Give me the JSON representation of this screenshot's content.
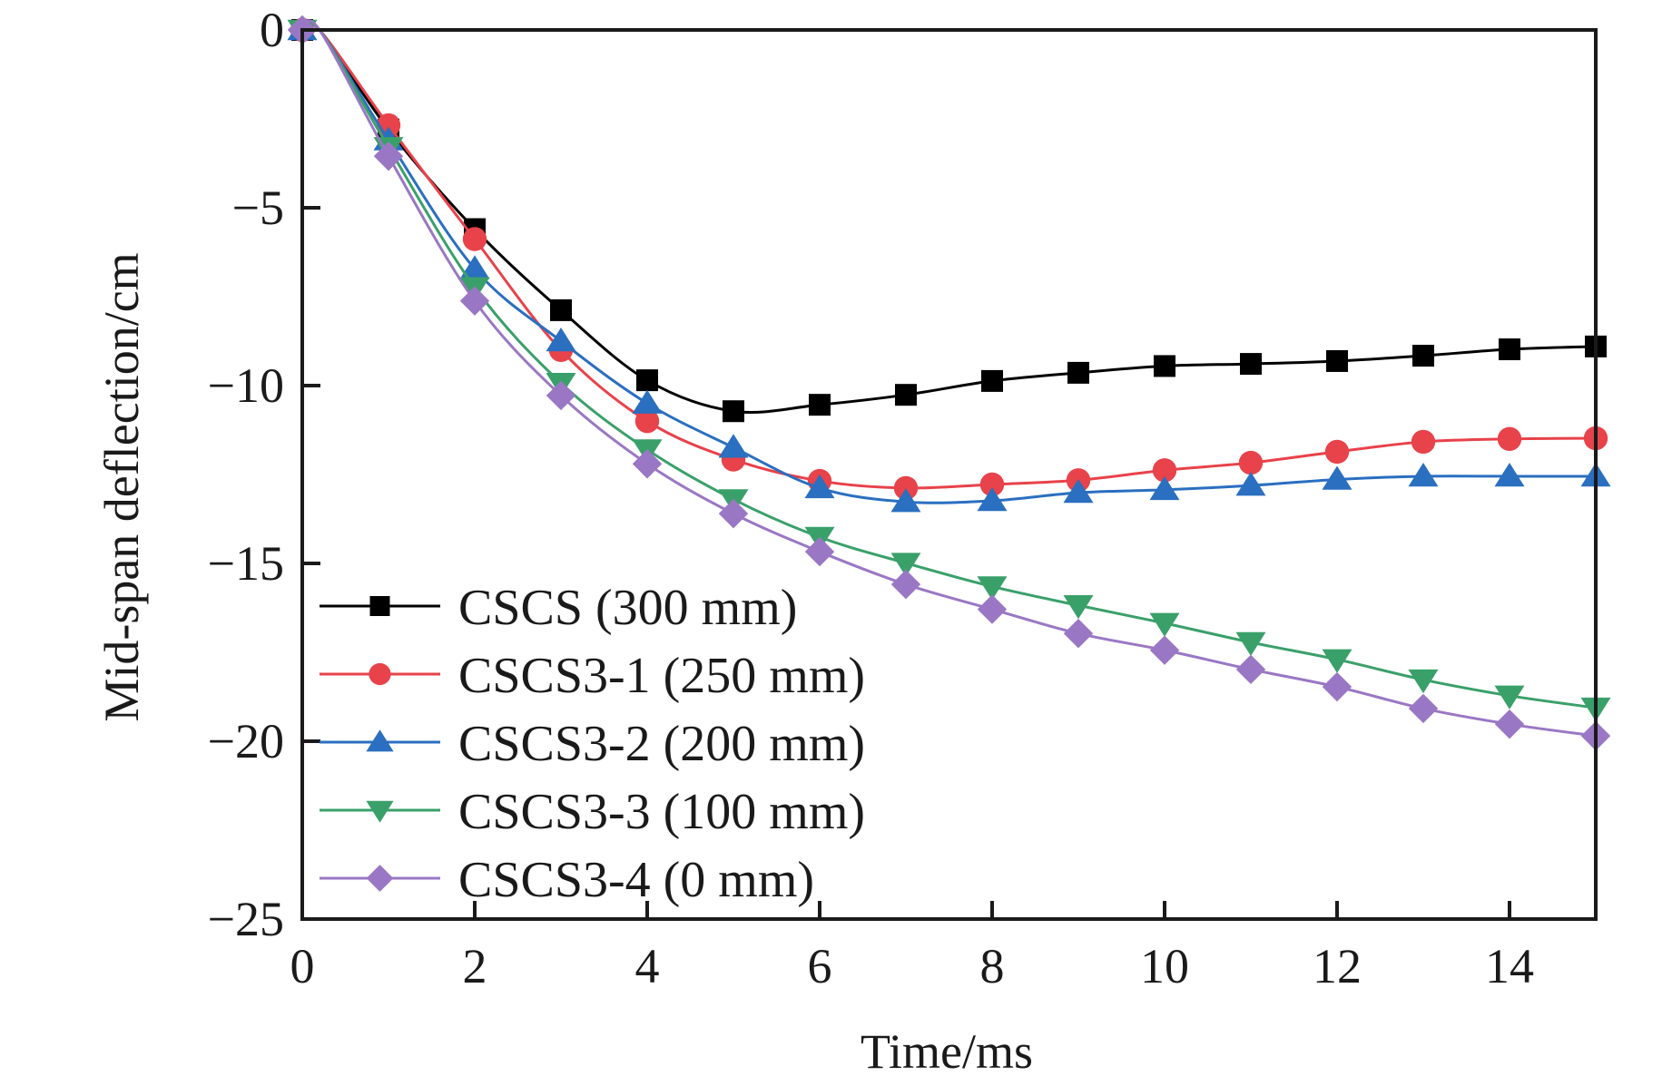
{
  "chart_data": {
    "type": "line",
    "title": "",
    "xlabel": "Time/ms",
    "ylabel": "Mid-span deflection/cm",
    "xlim": [
      0,
      15
    ],
    "ylim": [
      -25,
      0
    ],
    "grid": false,
    "legend_position": "bottom-left",
    "x_ticks": [
      0,
      2,
      4,
      6,
      8,
      10,
      12,
      14
    ],
    "x_tick_labels": [
      "0",
      "2",
      "4",
      "6",
      "8",
      "10",
      "12",
      "14"
    ],
    "y_ticks": [
      0,
      -5,
      -10,
      -15,
      -20,
      -25
    ],
    "y_tick_labels": [
      "0",
      "−5",
      "−10",
      "−15",
      "−20",
      "−25"
    ],
    "x": [
      0,
      1,
      2,
      3,
      4,
      5,
      6,
      7,
      8,
      9,
      10,
      11,
      12,
      13,
      14,
      15
    ],
    "series": [
      {
        "name": "CSCS (300 mm)",
        "color": "#000000",
        "marker": "square",
        "values": [
          0,
          -2.8,
          -5.6,
          -7.88,
          -9.85,
          -10.72,
          -10.54,
          -10.26,
          -9.87,
          -9.64,
          -9.45,
          -9.39,
          -9.31,
          -9.16,
          -8.98,
          -8.9
        ]
      },
      {
        "name": "CSCS3-1 (250 mm)",
        "color": "#e8424a",
        "marker": "circle",
        "values": [
          0,
          -2.68,
          -5.88,
          -9.0,
          -11.0,
          -12.08,
          -12.68,
          -12.88,
          -12.78,
          -12.66,
          -12.38,
          -12.17,
          -11.86,
          -11.58,
          -11.5,
          -11.48
        ]
      },
      {
        "name": "CSCS3-2 (200 mm)",
        "color": "#2a6fc0",
        "marker": "triangle-up",
        "values": [
          0,
          -3.1,
          -6.72,
          -8.75,
          -10.5,
          -11.74,
          -12.88,
          -13.27,
          -13.24,
          -13.01,
          -12.93,
          -12.81,
          -12.64,
          -12.55,
          -12.55,
          -12.55
        ]
      },
      {
        "name": "CSCS3-3 (100 mm)",
        "color": "#3aa06a",
        "marker": "triangle-down",
        "values": [
          0,
          -3.3,
          -7.24,
          -9.93,
          -11.8,
          -13.2,
          -14.26,
          -14.99,
          -15.65,
          -16.18,
          -16.68,
          -17.22,
          -17.7,
          -18.27,
          -18.72,
          -19.06
        ]
      },
      {
        "name": "CSCS3-4 (0 mm)",
        "color": "#9a77c4",
        "marker": "diamond",
        "values": [
          0,
          -3.55,
          -7.62,
          -10.28,
          -12.2,
          -13.6,
          -14.67,
          -15.59,
          -16.29,
          -16.97,
          -17.44,
          -17.98,
          -18.47,
          -19.08,
          -19.52,
          -19.85
        ]
      }
    ]
  }
}
